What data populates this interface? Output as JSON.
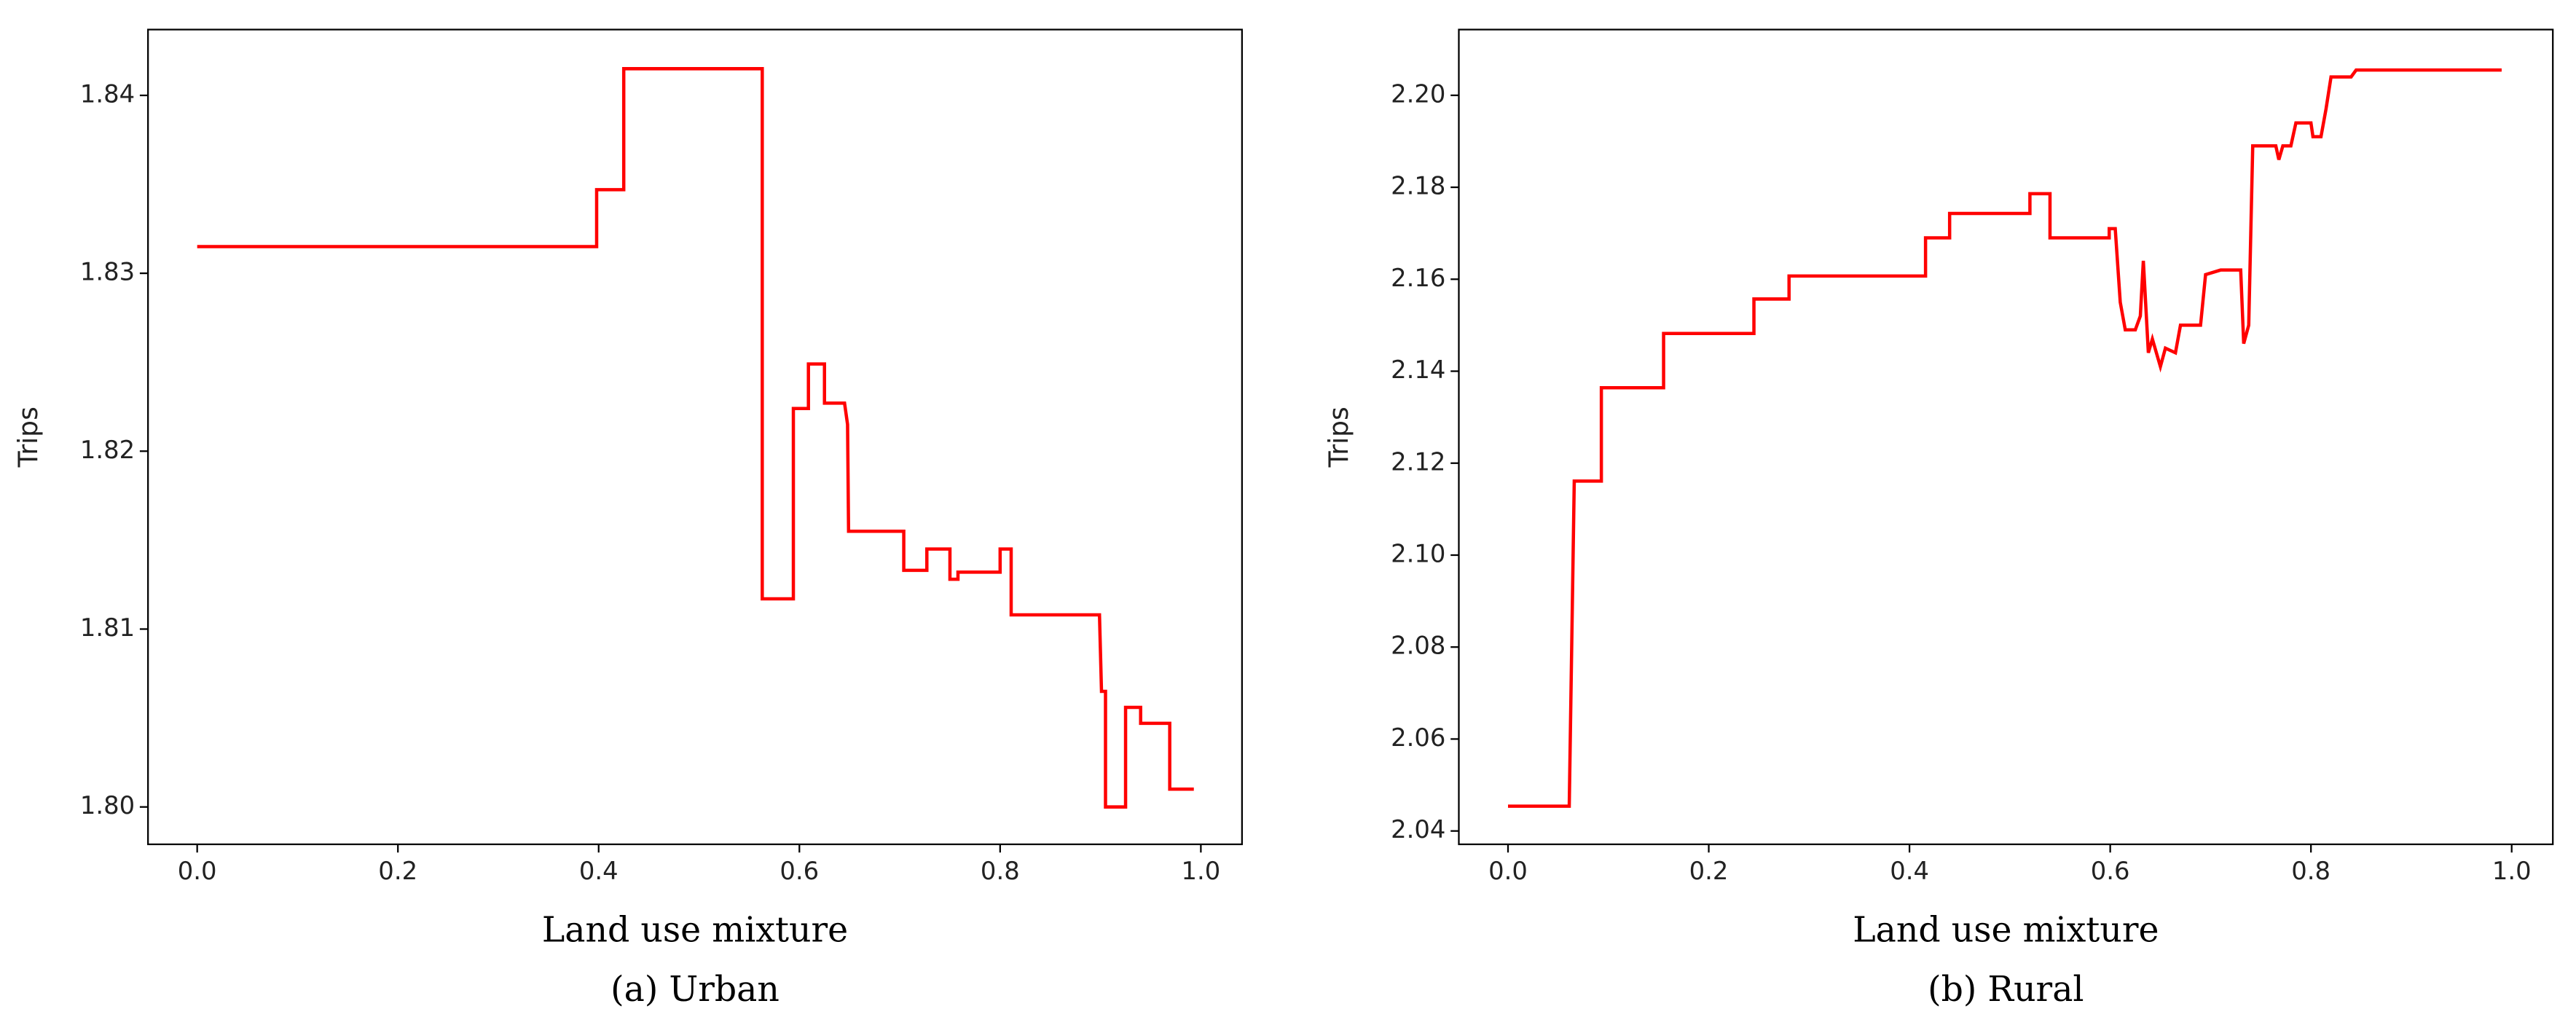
{
  "chart_data": [
    {
      "type": "line",
      "caption": "(a) Urban",
      "xlabel": "Land use mixture",
      "ylabel": "Trips",
      "xlim": [
        -0.049,
        1.041
      ],
      "ylim": [
        1.7979,
        1.8437
      ],
      "xticks": [
        {
          "value": 0,
          "label": "0.0"
        },
        0.2,
        0.4,
        0.6,
        0.8,
        {
          "value": 1,
          "label": "1.0"
        }
      ],
      "yticks": [
        {
          "value": 1.8,
          "label": "1.80"
        },
        1.81,
        1.82,
        1.83,
        1.84
      ],
      "series": [
        {
          "color": "#ff0000",
          "x": [
            0,
            0.398,
            0.398,
            0.425,
            0.425,
            0.563,
            0.563,
            0.594,
            0.594,
            0.609,
            0.609,
            0.625,
            0.625,
            0.645,
            0.648,
            0.649,
            0.704,
            0.704,
            0.727,
            0.727,
            0.75,
            0.75,
            0.758,
            0.758,
            0.8,
            0.8,
            0.811,
            0.811,
            0.899,
            0.901,
            0.905,
            0.905,
            0.925,
            0.925,
            0.94,
            0.94,
            0.969,
            0.969,
            0.993
          ],
          "values": [
            1.8315,
            1.8315,
            1.8347,
            1.8347,
            1.8415,
            1.8415,
            1.8117,
            1.8117,
            1.8224,
            1.8224,
            1.8249,
            1.8249,
            1.8227,
            1.8227,
            1.8215,
            1.8155,
            1.8155,
            1.8133,
            1.8133,
            1.8145,
            1.8145,
            1.8128,
            1.8128,
            1.8132,
            1.8132,
            1.8145,
            1.8145,
            1.8108,
            1.8108,
            1.8065,
            1.8065,
            1.8,
            1.8,
            1.8056,
            1.8056,
            1.8047,
            1.8047,
            1.801,
            1.801
          ]
        }
      ]
    },
    {
      "type": "line",
      "caption": "(b) Rural",
      "xlabel": "Land use mixture",
      "ylabel": "Trips",
      "xlim": [
        -0.049,
        1.041
      ],
      "ylim": [
        2.0371,
        2.2143
      ],
      "xticks": [
        {
          "value": 0,
          "label": "0.0"
        },
        0.2,
        0.4,
        0.6,
        0.8,
        {
          "value": 1,
          "label": "1.0"
        }
      ],
      "yticks": [
        2.04,
        2.06,
        2.08,
        {
          "value": 2.1,
          "label": "2.10"
        },
        2.12,
        2.14,
        2.16,
        2.18,
        {
          "value": 2.2,
          "label": "2.20"
        }
      ],
      "series": [
        {
          "color": "#ff0000",
          "x": [
            0,
            0.061,
            0.066,
            0.093,
            0.093,
            0.155,
            0.155,
            0.245,
            0.245,
            0.28,
            0.28,
            0.416,
            0.416,
            0.44,
            0.44,
            0.52,
            0.52,
            0.54,
            0.54,
            0.599,
            0.599,
            0.605,
            0.61,
            0.615,
            0.625,
            0.63,
            0.633,
            0.638,
            0.642,
            0.65,
            0.655,
            0.665,
            0.67,
            0.69,
            0.695,
            0.71,
            0.73,
            0.733,
            0.738,
            0.742,
            0.765,
            0.768,
            0.772,
            0.78,
            0.785,
            0.8,
            0.802,
            0.81,
            0.815,
            0.82,
            0.84,
            0.845,
            0.99
          ],
          "values": [
            2.0454,
            2.0454,
            2.1161,
            2.1161,
            2.1364,
            2.1364,
            2.1482,
            2.1482,
            2.1557,
            2.1557,
            2.1607,
            2.1607,
            2.169,
            2.169,
            2.1743,
            2.1743,
            2.1786,
            2.1786,
            2.169,
            2.169,
            2.171,
            2.171,
            2.155,
            2.149,
            2.149,
            2.152,
            2.164,
            2.144,
            2.147,
            2.141,
            2.145,
            2.144,
            2.15,
            2.15,
            2.161,
            2.162,
            2.162,
            2.146,
            2.15,
            2.189,
            2.189,
            2.186,
            2.189,
            2.189,
            2.194,
            2.194,
            2.191,
            2.191,
            2.197,
            2.204,
            2.204,
            2.2055,
            2.2055
          ]
        }
      ]
    }
  ]
}
